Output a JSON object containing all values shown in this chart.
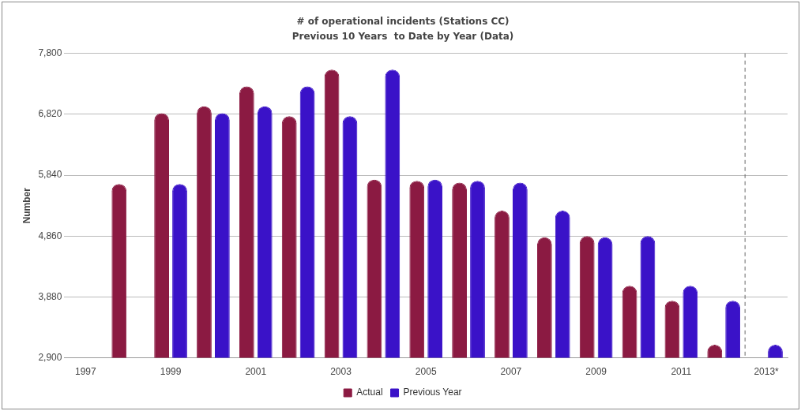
{
  "chart_data": {
    "type": "bar",
    "title": "# of operational incidents (Stations CC)",
    "subtitle": "Previous 10 Years  to Date by Year (Data)",
    "ylabel": "Number",
    "categories": [
      "1997",
      null,
      "1999",
      null,
      "2001",
      null,
      "2003",
      null,
      "2005",
      null,
      "2007",
      null,
      "2009",
      null,
      "2011",
      null,
      "2013*"
    ],
    "series": [
      {
        "name": "Actual",
        "color": "#8b1a42",
        "values": [
          null,
          5700,
          6840,
          6950,
          7270,
          6790,
          7540,
          5770,
          5750,
          5720,
          5270,
          4840,
          4860,
          4060,
          3820,
          3110,
          null
        ]
      },
      {
        "name": "Previous Year",
        "color": "#3a12c8",
        "values": [
          null,
          null,
          5700,
          6840,
          6950,
          7270,
          6790,
          7540,
          5770,
          5750,
          5720,
          5270,
          4840,
          4860,
          4060,
          3820,
          3110
        ]
      }
    ],
    "ylim": [
      2900,
      7800
    ],
    "yticks": [
      {
        "value": 2900,
        "label": "2,900"
      },
      {
        "value": 3880,
        "label": "3,880"
      },
      {
        "value": 4860,
        "label": "4,860"
      },
      {
        "value": 5840,
        "label": "5,840"
      },
      {
        "value": 6820,
        "label": "6,820"
      },
      {
        "value": 7800,
        "label": "7,800"
      }
    ],
    "grid": "y",
    "legend": "bottom",
    "ref_lines": [
      {
        "axis": "x",
        "value": "2013*",
        "color": "#666666",
        "line_style": "dashed"
      }
    ]
  }
}
